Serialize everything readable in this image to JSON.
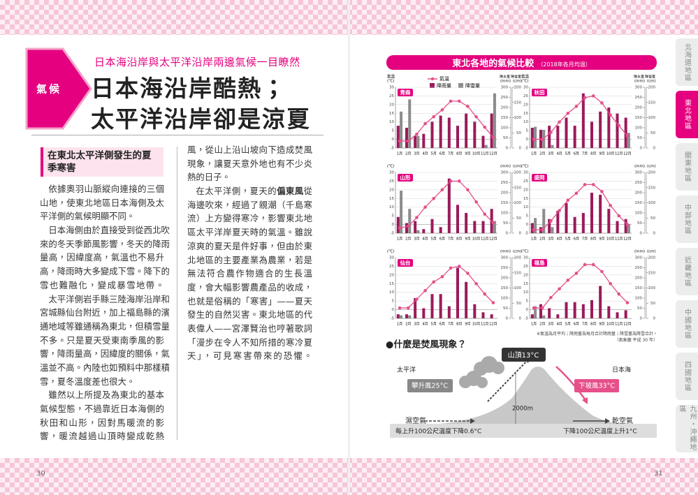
{
  "header": {
    "tag": "氣候",
    "subtitle": "日本海沿岸與太平洋沿岸兩邊氣候一目瞭然",
    "title_lines": [
      "日本海沿岸酷熱；",
      "太平洋沿岸卻是涼夏"
    ]
  },
  "section": {
    "heading": "在東北太平洋側發生的夏季寒害",
    "columns": [
      [
        "依據奧羽山脈縱向連接的三個",
        "山地，使東北地區日本海側及太",
        "平洋側的氣候明顯不同。",
        "日本海側由於直接受到從西北吹",
        "來的冬天季節風影響，冬天的降雨",
        "量高，因緯度高，氣溫也不易升",
        "高，降雨時大多變成下雪。降下的",
        "雪也難融化，變成暴雪地帶。",
        "太平洋側岩手縣三陸海岸沿岸和",
        "宮城縣仙台附近，加上福島縣的濱",
        "通地域等雖通稱為東北，但積雪量",
        "不多。只是夏天受東南季風的影",
        "響，降雨量高，因緯度的關係，氣",
        "溫並不高。內陸也如預料中那樣積",
        "雪，夏冬溫度差也很大。",
        "雖然以上所提及為東北的基本",
        "氣候型態，不過靠近日本海側的",
        "秋田和山形，因對馬暖流的影",
        "響，暖流越過山頂時變成乾熱"
      ],
      [
        "風，從山上沿山坡向下造成焚風",
        "現象，讓夏天意外地也有不少炎",
        "熱的日子。",
        [
          {
            "text": "在太平洋側，夏天的"
          },
          {
            "text": "偏東風",
            "bold": true
          },
          {
            "text": "從"
          }
        ],
        "海邊吹來，經過了親潮（千島寒",
        "流）上方變得寒冷，影響東北地",
        "區太平洋岸夏天時的氣溫。雖說",
        "涼爽的夏天是件好事，但由於東",
        "北地區的主要產業為農業，若是",
        "無法符合農作物適合的生長溫",
        "度，會大幅影響農產品的收成，",
        "也就是俗稱的「寒害」——夏天",
        "發生的自然災害。東北地區的代",
        "表偉人——宮澤賢治也哼著歌詞",
        "「漫步在令人不知所措的寒冷夏",
        "天」，可見寒害帶來的恐懼。"
      ]
    ]
  },
  "chart_header": {
    "title": "東北各地的氣候比較",
    "subtitle": "（2018年各月均溫）"
  },
  "chart_note": {
    "text": "※氣溫為月平均；降雨量為每月合計降雨量；降雪量為降雪合計。",
    "source": "（氣象廳 平成 30 年）"
  },
  "chart_data": [
    {
      "type": "combo",
      "title": "青森",
      "categories": [
        "1月",
        "2月",
        "3月",
        "4月",
        "5月",
        "6月",
        "7月",
        "8月",
        "9月",
        "10月",
        "11月",
        "12月"
      ],
      "series": [
        {
          "name": "氣溫",
          "color": "#e5508a",
          "values": [
            -1,
            -1,
            3,
            9,
            13,
            17,
            22,
            22,
            19,
            13,
            7,
            1
          ]
        },
        {
          "name": "降雨量",
          "color": "#9b1a5b",
          "axis": "y2",
          "values": [
            110,
            100,
            60,
            70,
            130,
            160,
            150,
            110,
            170,
            130,
            60,
            170
          ]
        },
        {
          "name": "降雪量",
          "color": "#8c8c8c",
          "axis": "y3",
          "values": [
            120,
            160,
            40,
            0,
            0,
            0,
            0,
            0,
            0,
            0,
            10,
            180
          ]
        }
      ],
      "y_title": "氣溫",
      "y_label": "(℃)",
      "y2_title": "降水量",
      "y2_label": "(mm)",
      "y3_title": "降雪量",
      "y3_label": "(cm)",
      "ylim": [
        -5,
        30
      ],
      "yticks": [
        -5,
        0,
        5,
        10,
        15,
        20,
        25,
        30
      ],
      "y2lim": [
        0,
        300
      ],
      "y2ticks": [
        0,
        50,
        100,
        150,
        200,
        250,
        300
      ],
      "y3lim": [
        0,
        200
      ],
      "y3ticks": [
        0,
        50,
        100,
        150,
        200
      ]
    },
    {
      "type": "combo",
      "title": "秋田",
      "categories": [
        "1月",
        "2月",
        "3月",
        "4月",
        "5月",
        "6月",
        "7月",
        "8月",
        "9月",
        "10月",
        "11月",
        "12月"
      ],
      "series": [
        {
          "color": "#e5508a",
          "values": [
            0,
            0,
            4,
            10,
            15,
            19,
            24,
            25,
            21,
            14,
            8,
            2
          ]
        },
        {
          "color": "#9b1a5b",
          "axis": "y2",
          "values": [
            100,
            90,
            110,
            110,
            150,
            110,
            270,
            130,
            180,
            200,
            170,
            150
          ]
        },
        {
          "color": "#8c8c8c",
          "axis": "y3",
          "values": [
            70,
            60,
            10,
            0,
            0,
            0,
            0,
            0,
            0,
            0,
            0,
            50
          ]
        }
      ],
      "y_title": "氣溫",
      "y_label": "(℃)",
      "y2_title": "降水量",
      "y2_label": "(mm)",
      "y3_title": "降雪量",
      "y3_label": "(cm)",
      "ylim": [
        -5,
        30
      ],
      "yticks": [
        -5,
        0,
        5,
        10,
        15,
        20,
        25,
        30
      ],
      "y2lim": [
        0,
        300
      ],
      "y2ticks": [
        0,
        50,
        100,
        150,
        200,
        250,
        300
      ],
      "y3lim": [
        0,
        200
      ],
      "y3ticks": [
        0,
        50,
        100,
        150,
        200
      ]
    },
    {
      "type": "combo",
      "title": "山形",
      "categories": [
        "1月",
        "2月",
        "3月",
        "4月",
        "5月",
        "6月",
        "7月",
        "8月",
        "9月",
        "10月",
        "11月",
        "12月"
      ],
      "series": [
        {
          "color": "#e5508a",
          "values": [
            -2,
            -1,
            4,
            10,
            15,
            20,
            25,
            25,
            20,
            13,
            6,
            1
          ]
        },
        {
          "color": "#9b1a5b",
          "axis": "y2",
          "values": [
            80,
            50,
            60,
            20,
            70,
            30,
            270,
            140,
            100,
            60,
            60,
            120
          ]
        },
        {
          "color": "#8c8c8c",
          "axis": "y3",
          "values": [
            140,
            80,
            10,
            0,
            0,
            0,
            0,
            0,
            0,
            0,
            0,
            40
          ]
        }
      ],
      "y_label": "(℃)",
      "y2_label": "(mm)",
      "y3_label": "(cm)",
      "ylim": [
        -5,
        30
      ],
      "yticks": [
        -5,
        0,
        5,
        10,
        15,
        20,
        25,
        30
      ],
      "y2lim": [
        0,
        300
      ],
      "y2ticks": [
        0,
        50,
        100,
        150,
        200,
        250,
        300
      ],
      "y3lim": [
        0,
        200
      ],
      "y3ticks": [
        0,
        50,
        100,
        150,
        200
      ]
    },
    {
      "type": "combo",
      "title": "盛岡",
      "categories": [
        "1月",
        "2月",
        "3月",
        "4月",
        "5月",
        "6月",
        "7月",
        "8月",
        "9月",
        "10月",
        "11月",
        "12月"
      ],
      "series": [
        {
          "color": "#e5508a",
          "values": [
            -3,
            -3,
            2,
            8,
            14,
            18,
            23,
            23,
            19,
            11,
            5,
            0
          ]
        },
        {
          "color": "#9b1a5b",
          "axis": "y2",
          "values": [
            50,
            30,
            70,
            110,
            150,
            80,
            100,
            200,
            190,
            120,
            60,
            70
          ]
        },
        {
          "color": "#8c8c8c",
          "axis": "y3",
          "values": [
            50,
            80,
            20,
            0,
            0,
            0,
            0,
            0,
            0,
            0,
            0,
            30
          ]
        }
      ],
      "y_label": "(℃)",
      "y2_label": "(mm)",
      "y3_label": "(cm)",
      "ylim": [
        -5,
        30
      ],
      "yticks": [
        -5,
        0,
        5,
        10,
        15,
        20,
        25,
        30
      ],
      "y2lim": [
        0,
        300
      ],
      "y2ticks": [
        0,
        50,
        100,
        150,
        200,
        250,
        300
      ],
      "y3lim": [
        0,
        200
      ],
      "y3ticks": [
        0,
        50,
        100,
        150,
        200
      ]
    },
    {
      "type": "combo",
      "title": "仙台",
      "categories": [
        "1月",
        "2月",
        "3月",
        "4月",
        "5月",
        "6月",
        "7月",
        "8月",
        "9月",
        "10月",
        "11月",
        "12月"
      ],
      "series": [
        {
          "color": "#e5508a",
          "values": [
            1,
            1,
            6,
            11,
            16,
            19,
            24,
            25,
            21,
            15,
            9,
            4
          ]
        },
        {
          "color": "#9b1a5b",
          "axis": "y2",
          "values": [
            20,
            20,
            100,
            50,
            120,
            120,
            60,
            250,
            180,
            70,
            30,
            20
          ]
        },
        {
          "color": "#8c8c8c",
          "axis": "y3",
          "values": [
            10,
            10,
            0,
            0,
            0,
            0,
            0,
            0,
            0,
            0,
            0,
            0
          ]
        }
      ],
      "y_label": "(℃)",
      "y2_label": "(mm)",
      "y3_label": "(cm)",
      "ylim": [
        -5,
        30
      ],
      "yticks": [
        -5,
        0,
        5,
        10,
        15,
        20,
        25,
        30
      ],
      "y2lim": [
        0,
        300
      ],
      "y2ticks": [
        0,
        50,
        100,
        150,
        200,
        250,
        300
      ],
      "y3lim": [
        0,
        200
      ],
      "y3ticks": [
        0,
        50,
        100,
        150,
        200
      ]
    },
    {
      "type": "combo",
      "title": "福島",
      "categories": [
        "1月",
        "2月",
        "3月",
        "4月",
        "5月",
        "6月",
        "7月",
        "8月",
        "9月",
        "10月",
        "11月",
        "12月"
      ],
      "series": [
        {
          "color": "#e5508a",
          "values": [
            1,
            1,
            7,
            12,
            17,
            21,
            26,
            26,
            22,
            15,
            9,
            4
          ]
        },
        {
          "color": "#9b1a5b",
          "axis": "y2",
          "values": [
            20,
            70,
            50,
            20,
            80,
            80,
            70,
            90,
            160,
            60,
            30,
            40
          ]
        },
        {
          "color": "#8c8c8c",
          "axis": "y3",
          "values": [
            40,
            10,
            0,
            0,
            0,
            0,
            0,
            0,
            0,
            0,
            0,
            0
          ]
        }
      ],
      "y_label": "(℃)",
      "y2_label": "(mm)",
      "y3_label": "(cm)",
      "ylim": [
        -5,
        30
      ],
      "yticks": [
        -5,
        0,
        5,
        10,
        15,
        20,
        25,
        30
      ],
      "y2lim": [
        0,
        300
      ],
      "y2ticks": [
        0,
        50,
        100,
        150,
        200,
        250,
        300
      ],
      "y3lim": [
        0,
        200
      ],
      "y3ticks": [
        0,
        50,
        100,
        150,
        200
      ]
    }
  ],
  "foehn": {
    "title": "●什麼是焚風現象？",
    "summit": "山頂13°C",
    "pacific": "太平洋",
    "japan_sea": "日本海",
    "rising": "攀升風25°C",
    "falling": "下坡風33°C",
    "height": "2000m",
    "humid": "濕空氣",
    "dry": "乾空氣",
    "rise_rate": "每上升100公尺溫度下降0.6°C",
    "fall_rate": "下降100公尺溫度上升1°C"
  },
  "sidebar": {
    "tabs": [
      "北海道地區",
      "東北地區",
      "關東地區",
      "中部地區",
      "近畿地區",
      "中國地區",
      "四國地區",
      "九州・沖繩地區"
    ]
  },
  "page_numbers": {
    "left": "30",
    "right": "31"
  }
}
